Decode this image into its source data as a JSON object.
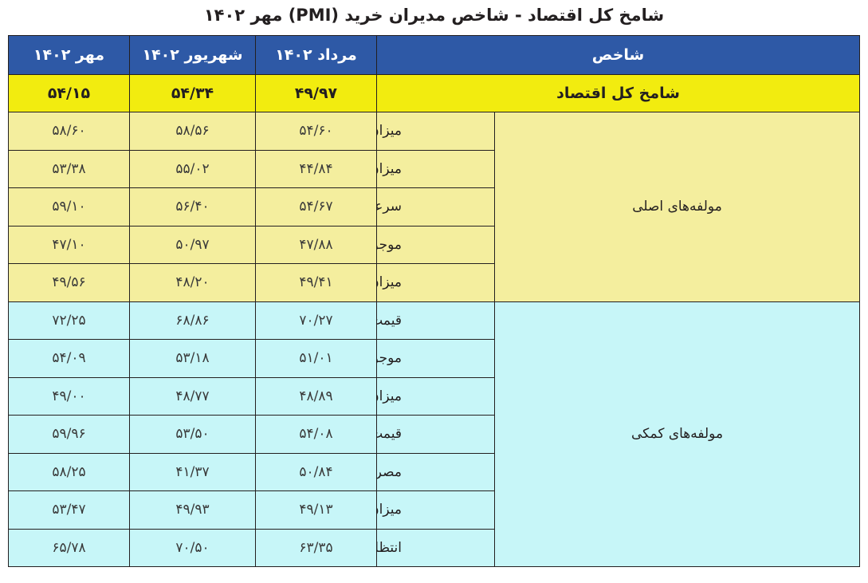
{
  "title": "شامخ کل اقتصاد - شاخص مدیران خرید (PMI) مهر ۱۴۰۲",
  "table": {
    "headers": {
      "indicator": "شاخص",
      "col1": "مرداد ۱۴۰۲",
      "col2": "شهریور ۱۴۰۲",
      "col3": "مهر ۱۴۰۲"
    },
    "total": {
      "label": "شامخ  کل اقتصاد",
      "values": [
        "۴۹/۹۷",
        "۵۴/۳۴",
        "۵۴/۱۵"
      ]
    },
    "groups": [
      {
        "name": "مولفه‌های اصلی",
        "rows": [
          {
            "label": "میزان فعالیت‌های کسب و کار",
            "values": [
              "۵۴/۶۰",
              "۵۸/۵۶",
              "۵۸/۶۰"
            ]
          },
          {
            "label": "میزان سفارشات جدید مشتریان",
            "values": [
              "۴۴/۸۴",
              "۵۵/۰۲",
              "۵۳/۳۸"
            ]
          },
          {
            "label": "سرعت انجام وتحویل سفارش",
            "values": [
              "۵۴/۶۷",
              "۵۶/۴۰",
              "۵۹/۱۰"
            ]
          },
          {
            "label": "موجودی مواد اولیه یا لوازم خریداری‌شده",
            "values": [
              "۴۷/۸۸",
              "۵۰/۹۷",
              "۴۷/۱۰"
            ]
          },
          {
            "label": "میزان استخدام و بکارگیری نیروی انسانی",
            "values": [
              "۴۹/۴۱",
              "۴۸/۲۰",
              "۴۹/۵۶"
            ]
          }
        ]
      },
      {
        "name": "مولفه‌های کمکی",
        "rows": [
          {
            "label": "قیمت خرید مواد اولیه یا لوازم خریداری‌شده",
            "values": [
              "۷۰/۲۷",
              "۶۸/۸۶",
              "۷۲/۲۵"
            ]
          },
          {
            "label": "موجودی محصول در انبار یا کارهای معوق",
            "values": [
              "۵۱/۰۱",
              "۵۳/۱۸",
              "۵۴/۰۹"
            ]
          },
          {
            "label": "میزان صادرات کالا یا خدمات",
            "values": [
              "۴۸/۸۹",
              "۴۸/۷۷",
              "۴۹/۰۰"
            ]
          },
          {
            "label": "قیمت محصولات تولیدشده یا خدمات ارائه‌شده",
            "values": [
              "۵۴/۰۸",
              "۵۳/۵۰",
              "۵۹/۹۶"
            ]
          },
          {
            "label": "مصرف حامل‌های انرژی",
            "values": [
              "۵۰/۸۴",
              "۴۱/۳۷",
              "۵۸/۲۵"
            ]
          },
          {
            "label": "میزان فروش کالاها یا خدمات",
            "values": [
              "۴۹/۱۳",
              "۴۹/۹۳",
              "۵۳/۴۷"
            ]
          },
          {
            "label": "انتظارات در ارتباط با میزان فعالیت اقتصادی در ماه آینده",
            "values": [
              "۶۳/۳۵",
              "۷۰/۵۰",
              "۶۵/۷۸"
            ]
          }
        ]
      }
    ]
  },
  "colors": {
    "header": "#2e59a6",
    "total": "#f2ec0f",
    "main_group": "#f4ee9e",
    "aux_group": "#c7f6f8"
  }
}
